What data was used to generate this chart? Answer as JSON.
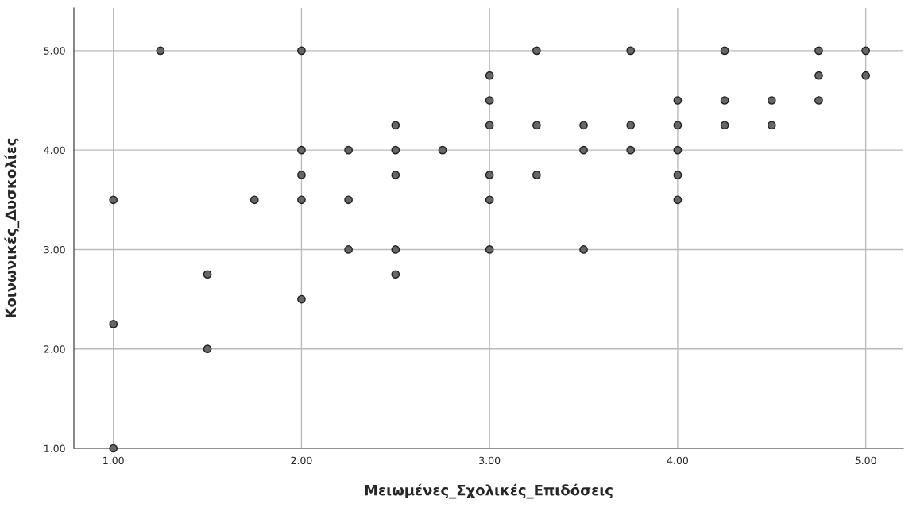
{
  "chart_data": {
    "type": "scatter",
    "xlabel": "Μειωμένες_Σχολικές_Επιδόσεις",
    "ylabel": "Κοινωνικές_Δυσκολίες",
    "series": [
      {
        "color": "#666666",
        "x": [
          1,
          1,
          1,
          1.25,
          1.5,
          1.5,
          1.75,
          2,
          2,
          2,
          2,
          2,
          2.25,
          2.25,
          2.25,
          2.5,
          2.5,
          2.5,
          2.5,
          2.5,
          2.75,
          3,
          3,
          3,
          3,
          3,
          3,
          3.25,
          3.25,
          3.25,
          3.5,
          3.5,
          3.5,
          3.75,
          3.75,
          3.75,
          4,
          4,
          4,
          4,
          4,
          4.25,
          4.25,
          4.25,
          4.5,
          4.5,
          4.75,
          4.75,
          4.75,
          5,
          5
        ],
        "values": [
          3.5,
          2.25,
          1,
          5,
          2.75,
          2,
          3.5,
          5,
          4,
          3.75,
          3.5,
          2.5,
          4,
          3.5,
          3,
          4.25,
          4,
          3.75,
          3,
          2.75,
          4,
          4.75,
          4.5,
          4.25,
          3.75,
          3.5,
          3,
          5,
          4.25,
          3.75,
          4.25,
          4,
          3,
          5,
          4.25,
          4,
          4.5,
          4.25,
          4,
          3.75,
          3.5,
          5,
          4.5,
          4.25,
          4.5,
          4.25,
          5,
          4.75,
          4.5,
          5,
          4.75
        ]
      }
    ],
    "xlim": [
      0.79,
      5.2
    ],
    "ylim": [
      1,
      5.43
    ],
    "xticks": [
      {
        "value": 1,
        "label": "1.00"
      },
      {
        "value": 2,
        "label": "2.00"
      },
      {
        "value": 3,
        "label": "3.00"
      },
      {
        "value": 4,
        "label": "4.00"
      },
      {
        "value": 5,
        "label": "5.00"
      }
    ],
    "yticks": [
      {
        "value": 1,
        "label": "1.00"
      },
      {
        "value": 2,
        "label": "2.00"
      },
      {
        "value": 3,
        "label": "3.00"
      },
      {
        "value": 4,
        "label": "4.00"
      },
      {
        "value": 5,
        "label": "5.00"
      }
    ],
    "grid": true,
    "marker": "circle"
  }
}
